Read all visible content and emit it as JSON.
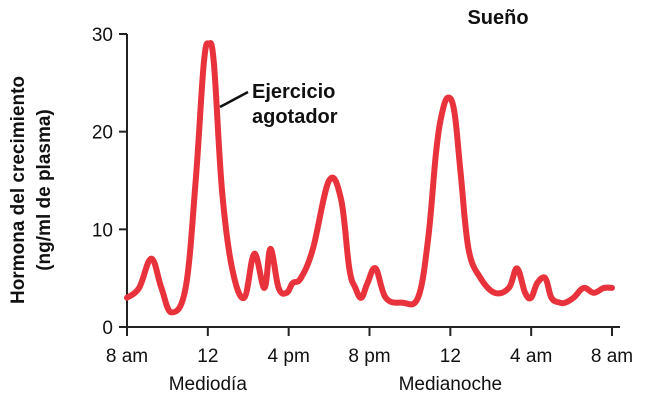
{
  "chart_data": {
    "type": "line",
    "title": "",
    "ylabel_line1": "Hormona del crecimiento",
    "ylabel_line2": "(ng/ml de plasma)",
    "xlabel": "",
    "ylim": [
      0,
      30
    ],
    "yticks": [
      0,
      10,
      20,
      30
    ],
    "xlim": [
      0,
      24
    ],
    "xticks": [
      {
        "x": 0,
        "label": "8 am"
      },
      {
        "x": 4,
        "label": "12"
      },
      {
        "x": 8,
        "label": "4 pm"
      },
      {
        "x": 12,
        "label": "8 pm"
      },
      {
        "x": 16,
        "label": "12"
      },
      {
        "x": 20,
        "label": "4 am"
      },
      {
        "x": 24,
        "label": "8 am"
      }
    ],
    "period_labels": [
      {
        "x": 4,
        "label": "Mediodía"
      },
      {
        "x": 16,
        "label": "Medianoche"
      }
    ],
    "grid": false,
    "series": [
      {
        "color": "#e8323c",
        "x": [
          0,
          0.6,
          1.2,
          1.7,
          2.2,
          2.9,
          3.4,
          3.8,
          4.05,
          4.3,
          4.7,
          5.2,
          5.8,
          6.3,
          6.8,
          7.1,
          7.5,
          7.9,
          8.2,
          8.6,
          9.2,
          10.0,
          10.6,
          11.0,
          11.3,
          11.6,
          11.9,
          12.3,
          12.8,
          13.6,
          14.4,
          14.9,
          15.3,
          15.6,
          15.9,
          16.2,
          16.5,
          16.9,
          17.5,
          18.2,
          18.9,
          19.3,
          19.7,
          20.0,
          20.3,
          20.7,
          21.0,
          21.4,
          21.7,
          22.1,
          22.6,
          23.1,
          23.6,
          24.0
        ],
        "y": [
          3,
          4,
          7,
          4,
          1.5,
          4,
          15,
          27,
          29,
          27,
          14,
          6,
          3,
          7.5,
          4,
          8,
          4,
          3.5,
          4.5,
          5,
          8,
          15,
          13,
          6,
          4,
          3,
          4.5,
          6,
          3,
          2.5,
          3,
          9,
          18,
          22,
          23.5,
          22,
          16,
          8,
          5,
          3.5,
          4,
          6,
          3.5,
          3,
          4.5,
          5,
          3,
          2.5,
          2.5,
          3,
          4,
          3.5,
          4,
          4
        ]
      }
    ],
    "annotations": [
      {
        "text": "Ejercicio",
        "x": 4.3,
        "y": 24
      },
      {
        "text": "agotador",
        "x": 4.3,
        "y": 24
      },
      {
        "text": "Sueño",
        "x": 16,
        "y": 30
      }
    ]
  }
}
